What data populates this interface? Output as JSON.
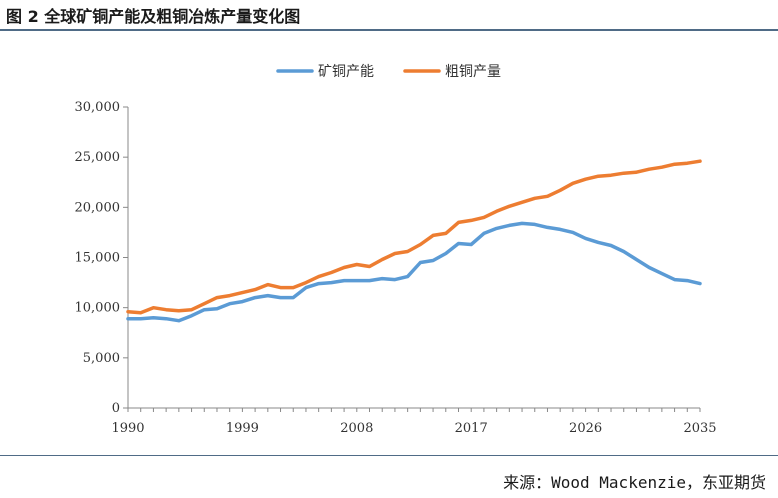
{
  "header": {
    "title": "图 2  全球矿铜产能及粗铜冶炼产量变化图"
  },
  "footer": {
    "source": "来源：Wood Mackenzie，东亚期货"
  },
  "colors": {
    "rule": "#4f6b86",
    "axis": "#888888"
  },
  "chart_data": {
    "type": "line",
    "title": "",
    "xlabel": "",
    "ylabel": "",
    "xlim": [
      1990,
      2035
    ],
    "ylim": [
      0,
      30000
    ],
    "y_ticks": [
      0,
      5000,
      10000,
      15000,
      20000,
      25000,
      30000
    ],
    "y_tick_labels": [
      "0",
      "5,000",
      "10,000",
      "15,000",
      "20,000",
      "25,000",
      "30,000"
    ],
    "x_ticks": [
      1990,
      1999,
      2008,
      2017,
      2026,
      2035
    ],
    "x_tick_labels": [
      "1990",
      "1999",
      "2008",
      "2017",
      "2026",
      "2035"
    ],
    "grid": false,
    "legend_position": "top-center",
    "x": [
      1990,
      1991,
      1992,
      1993,
      1994,
      1995,
      1996,
      1997,
      1998,
      1999,
      2000,
      2001,
      2002,
      2003,
      2004,
      2005,
      2006,
      2007,
      2008,
      2009,
      2010,
      2011,
      2012,
      2013,
      2014,
      2015,
      2016,
      2017,
      2018,
      2019,
      2020,
      2021,
      2022,
      2023,
      2024,
      2025,
      2026,
      2027,
      2028,
      2029,
      2030,
      2031,
      2032,
      2033,
      2034,
      2035
    ],
    "series": [
      {
        "name": "矿铜产能",
        "color": "#5b9bd5",
        "values": [
          8900,
          8900,
          9000,
          8900,
          8700,
          9200,
          9800,
          9900,
          10400,
          10600,
          11000,
          11200,
          11000,
          11000,
          12000,
          12400,
          12500,
          12700,
          12700,
          12700,
          12900,
          12800,
          13100,
          14500,
          14700,
          15400,
          16400,
          16300,
          17400,
          17900,
          18200,
          18400,
          18300,
          18000,
          17800,
          17500,
          16900,
          16500,
          16200,
          15600,
          14800,
          14000,
          13400,
          12800,
          12700,
          12400
        ]
      },
      {
        "name": "粗铜产量",
        "color": "#ed7d31",
        "values": [
          9600,
          9500,
          10000,
          9800,
          9700,
          9800,
          10400,
          11000,
          11200,
          11500,
          11800,
          12300,
          12000,
          12000,
          12500,
          13100,
          13500,
          14000,
          14300,
          14100,
          14800,
          15400,
          15600,
          16300,
          17200,
          17400,
          18500,
          18700,
          19000,
          19600,
          20100,
          20500,
          20900,
          21100,
          21700,
          22400,
          22800,
          23100,
          23200,
          23400,
          23500,
          23800,
          24000,
          24300,
          24400,
          24600
        ]
      }
    ]
  }
}
